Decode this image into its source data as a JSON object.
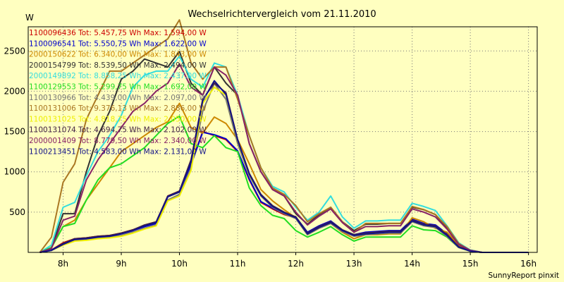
{
  "chart_data": {
    "type": "line",
    "title": "Wechselrichtervergleich vom 21.11.2010",
    "ylabel": "W",
    "xlabel": "",
    "footer": "SunnyReport pinxit",
    "ylim": [
      0,
      2800
    ],
    "xlim": [
      7.4,
      16.15
    ],
    "y_ticks": [
      500,
      1000,
      1500,
      2000,
      2500
    ],
    "x_ticks": [
      {
        "value": 8,
        "label": "8h"
      },
      {
        "value": 9,
        "label": "9h"
      },
      {
        "value": 10,
        "label": "10h"
      },
      {
        "value": 11,
        "label": "11h"
      },
      {
        "value": 12,
        "label": "12h"
      },
      {
        "value": 13,
        "label": "13h"
      },
      {
        "value": 14,
        "label": "14h"
      },
      {
        "value": 15,
        "label": "15h"
      },
      {
        "value": 16,
        "label": "16h"
      }
    ],
    "grid": true,
    "legend_position": "top-left",
    "x": [
      7.6,
      7.8,
      8.0,
      8.2,
      8.4,
      8.6,
      8.8,
      9.0,
      9.2,
      9.4,
      9.6,
      9.8,
      10.0,
      10.2,
      10.4,
      10.6,
      10.8,
      11.0,
      11.2,
      11.4,
      11.6,
      11.8,
      12.0,
      12.2,
      12.4,
      12.6,
      12.8,
      13.0,
      13.2,
      13.4,
      13.6,
      13.8,
      14.0,
      14.2,
      14.4,
      14.6,
      14.8,
      15.0,
      15.2,
      15.4,
      15.6,
      15.8,
      16.0
    ],
    "series": [
      {
        "name": "1100096436",
        "legend": "1100096436 Tot: 5.457,75 Wh Max: 1.594,00 W",
        "color": "#cc0000",
        "values": [
          0,
          30,
          120,
          170,
          180,
          200,
          210,
          240,
          280,
          330,
          370,
          700,
          760,
          1100,
          1500,
          1450,
          1400,
          1250,
          900,
          620,
          540,
          470,
          430,
          240,
          320,
          380,
          270,
          210,
          240,
          250,
          260,
          260,
          400,
          350,
          330,
          220,
          70,
          20,
          0,
          0,
          0,
          0,
          0
        ]
      },
      {
        "name": "1100096541",
        "legend": "1100096541 Tot: 5.550,75 Wh Max: 1.622,00 W",
        "color": "#0000cc",
        "values": [
          0,
          30,
          110,
          160,
          170,
          190,
          200,
          230,
          270,
          320,
          360,
          690,
          750,
          1090,
          1490,
          1460,
          1410,
          1260,
          910,
          630,
          550,
          480,
          440,
          250,
          330,
          390,
          280,
          220,
          250,
          260,
          270,
          270,
          410,
          360,
          340,
          230,
          75,
          20,
          0,
          0,
          0,
          0,
          0
        ]
      },
      {
        "name": "2000150622",
        "legend": "2000150622 Tot: 6.340,00 Wh Max: 1.843,00 W",
        "color": "#cc8800",
        "values": [
          0,
          60,
          320,
          400,
          650,
          850,
          1050,
          1250,
          1350,
          1450,
          1550,
          1620,
          1850,
          1550,
          1480,
          1680,
          1600,
          1400,
          1100,
          780,
          640,
          530,
          430,
          220,
          300,
          360,
          250,
          170,
          220,
          220,
          230,
          230,
          430,
          380,
          300,
          250,
          90,
          20,
          0,
          0,
          0,
          0,
          0
        ]
      },
      {
        "name": "2000154799",
        "legend": "2000154799 Tot: 8.539,50 Wh Max: 2.494,00 W",
        "color": "#333333",
        "values": [
          0,
          60,
          480,
          480,
          1000,
          1450,
          1750,
          2150,
          2250,
          2400,
          2350,
          2300,
          2494,
          2100,
          1950,
          2300,
          2100,
          1950,
          1350,
          1000,
          780,
          700,
          480,
          350,
          470,
          560,
          380,
          270,
          350,
          350,
          360,
          360,
          560,
          530,
          470,
          300,
          100,
          30,
          0,
          0,
          0,
          0,
          0
        ]
      },
      {
        "name": "2000149892",
        "legend": "2000149892 Tot: 8.858,25 Wh Max: 2.437,00 W",
        "color": "#33dddd",
        "values": [
          0,
          90,
          560,
          620,
          950,
          1250,
          1450,
          1700,
          2050,
          2200,
          2250,
          2250,
          2437,
          2150,
          2050,
          2350,
          2300,
          1950,
          1450,
          1050,
          820,
          750,
          560,
          400,
          500,
          700,
          440,
          300,
          390,
          390,
          400,
          400,
          610,
          570,
          520,
          330,
          120,
          30,
          0,
          0,
          0,
          0,
          0
        ]
      },
      {
        "name": "1100129553",
        "legend": "1100129553 Tot: 5.299,75 Wh Max: 1.692,00 W",
        "color": "#22dd22",
        "values": [
          0,
          60,
          320,
          360,
          650,
          900,
          1050,
          1100,
          1200,
          1300,
          1450,
          1600,
          1692,
          1350,
          1300,
          1450,
          1300,
          1250,
          800,
          580,
          460,
          420,
          270,
          190,
          250,
          320,
          220,
          140,
          190,
          190,
          190,
          190,
          330,
          280,
          270,
          190,
          60,
          15,
          0,
          0,
          0,
          0,
          0
        ]
      },
      {
        "name": "1100130966",
        "legend": "1100130966 Tot: 4.439,00 Wh Max: 2.097,00 W",
        "color": "#777777",
        "values": [
          0,
          25,
          100,
          150,
          160,
          180,
          190,
          210,
          250,
          300,
          340,
          650,
          720,
          1050,
          1750,
          2097,
          1900,
          1350,
          950,
          700,
          560,
          480,
          420,
          220,
          300,
          360,
          260,
          200,
          220,
          230,
          240,
          240,
          380,
          330,
          310,
          200,
          60,
          15,
          0,
          0,
          0,
          0,
          0
        ]
      },
      {
        "name": "1100131006",
        "legend": "1100131006 Tot: 9.376,13 Wh Max: 2.886,00 W",
        "color": "#aa7722",
        "values": [
          0,
          190,
          870,
          1100,
          1650,
          1950,
          2250,
          2250,
          2350,
          2450,
          2550,
          2650,
          2886,
          2350,
          2150,
          2300,
          2300,
          1900,
          1450,
          1050,
          800,
          720,
          580,
          380,
          480,
          560,
          380,
          250,
          360,
          360,
          360,
          360,
          570,
          530,
          470,
          320,
          110,
          25,
          0,
          0,
          0,
          0,
          0
        ]
      },
      {
        "name": "1100131025",
        "legend": "1100131025 Tot: 4.818,75 Wh Max: 2.050,00 W",
        "color": "#eeee00",
        "values": [
          0,
          25,
          90,
          140,
          150,
          170,
          180,
          200,
          240,
          290,
          330,
          640,
          700,
          1020,
          1850,
          2050,
          1950,
          1380,
          960,
          710,
          570,
          490,
          430,
          230,
          310,
          370,
          270,
          210,
          230,
          240,
          250,
          250,
          390,
          340,
          320,
          210,
          65,
          15,
          0,
          0,
          0,
          0,
          0
        ]
      },
      {
        "name": "1100131074",
        "legend": "1100131074 Tot: 4.694,75 Wh Max: 2.102,00 W",
        "color": "#442244",
        "values": [
          0,
          25,
          110,
          170,
          180,
          200,
          210,
          240,
          280,
          340,
          380,
          700,
          760,
          1150,
          1900,
          2102,
          1980,
          1400,
          980,
          720,
          580,
          500,
          440,
          240,
          320,
          380,
          280,
          220,
          240,
          250,
          260,
          260,
          400,
          350,
          330,
          220,
          70,
          20,
          0,
          0,
          0,
          0,
          0
        ]
      },
      {
        "name": "2000001409",
        "legend": "2000001409 Tot: 8.779,50 Wh Max: 2.340,00 W",
        "color": "#882266",
        "values": [
          0,
          50,
          400,
          450,
          900,
          1150,
          1350,
          1550,
          1750,
          1850,
          2000,
          2100,
          2340,
          2050,
          1950,
          2300,
          2200,
          1950,
          1350,
          1000,
          780,
          700,
          500,
          340,
          450,
          540,
          370,
          250,
          320,
          320,
          330,
          330,
          540,
          500,
          440,
          290,
          100,
          25,
          0,
          0,
          0,
          0,
          0
        ]
      },
      {
        "name": "1100213451",
        "legend": "1100213451 Tot: 4.583,00 Wh Max: 2.131,00 W",
        "color": "#111188",
        "values": [
          0,
          25,
          100,
          160,
          170,
          190,
          200,
          230,
          270,
          330,
          370,
          690,
          750,
          1120,
          1880,
          2131,
          1960,
          1390,
          970,
          710,
          570,
          490,
          430,
          230,
          310,
          370,
          270,
          210,
          230,
          240,
          250,
          250,
          390,
          340,
          320,
          210,
          65,
          15,
          0,
          0,
          0,
          0,
          0
        ]
      }
    ]
  }
}
